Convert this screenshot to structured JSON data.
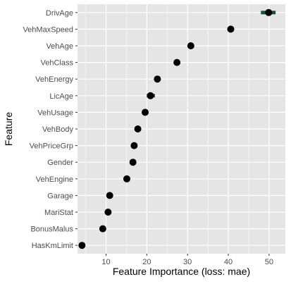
{
  "chart_data": {
    "type": "scatter",
    "title": "",
    "xlabel": "Feature Importance (loss: mae)",
    "ylabel": "Feature",
    "xlim": [
      3,
      54
    ],
    "x_ticks": [
      10,
      20,
      30,
      40,
      50
    ],
    "grid": true,
    "panel_background": "#e5e5e5",
    "grid_color": "#ffffff",
    "point_color": "#000000",
    "interval_color": "#1f4e3d",
    "categories": [
      "DrivAge",
      "VehMaxSpeed",
      "VehAge",
      "VehClass",
      "VehEnergy",
      "LicAge",
      "VehUsage",
      "VehBody",
      "VehPriceGrp",
      "Gender",
      "VehEngine",
      "Garage",
      "MariStat",
      "BonusMalus",
      "HasKmLimit"
    ],
    "values": [
      49.9,
      40.6,
      30.8,
      27.4,
      22.6,
      20.9,
      19.6,
      17.8,
      16.9,
      16.6,
      15.1,
      10.9,
      10.5,
      9.2,
      4.1
    ],
    "lower": [
      48.0,
      40.3,
      30.2,
      27.0,
      22.4,
      20.0,
      19.4,
      17.6,
      16.7,
      16.4,
      14.9,
      10.7,
      10.3,
      9.0,
      3.9
    ],
    "upper": [
      51.6,
      40.9,
      31.4,
      28.0,
      22.8,
      22.0,
      19.8,
      18.0,
      17.1,
      16.8,
      15.3,
      11.1,
      10.7,
      9.4,
      4.3
    ]
  }
}
